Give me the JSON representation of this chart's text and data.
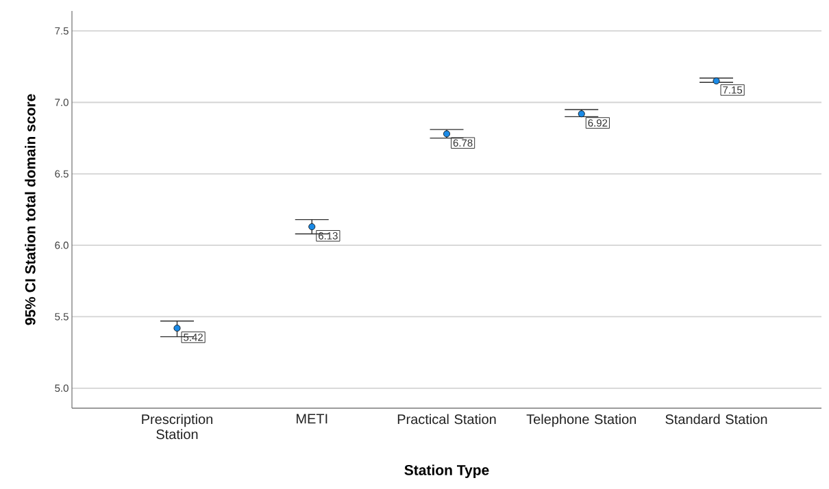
{
  "chart_data": {
    "type": "scatter",
    "xlabel": "Station Type",
    "ylabel": "95% CI Station total domain score",
    "categories": [
      "Prescription Station",
      "METI",
      "Practical Station",
      "Telephone Station",
      "Standard Station"
    ],
    "values": [
      5.42,
      6.13,
      6.78,
      6.92,
      7.15
    ],
    "color": "#1a8ae6",
    "errors": [
      [
        5.36,
        5.47
      ],
      [
        6.08,
        6.18
      ],
      [
        6.75,
        6.81
      ],
      [
        6.9,
        6.95
      ],
      [
        7.14,
        7.17
      ]
    ],
    "ylim": [
      4.86,
      7.64
    ],
    "yticks": [
      {
        "value": 5,
        "label": "5.0"
      },
      {
        "value": 5.5,
        "label": "5.5"
      },
      {
        "value": 6,
        "label": "6.0"
      },
      {
        "value": 6.5,
        "label": "6.5"
      },
      {
        "value": 7,
        "label": "7.0"
      },
      {
        "value": 7.5,
        "label": "7.5"
      }
    ],
    "grid": "y",
    "marker": "circle",
    "data_labels": true
  }
}
